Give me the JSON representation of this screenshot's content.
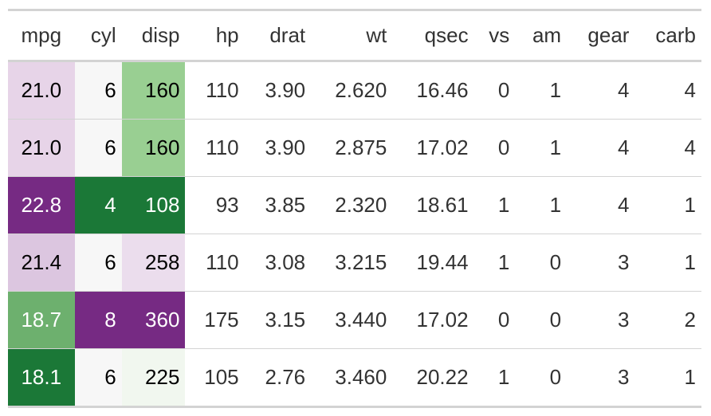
{
  "columns": [
    "mpg",
    "cyl",
    "disp",
    "hp",
    "drat",
    "wt",
    "qsec",
    "vs",
    "am",
    "gear",
    "carb"
  ],
  "rows": [
    [
      "21.0",
      "6",
      "160",
      "110",
      "3.90",
      "2.620",
      "16.46",
      "0",
      "1",
      "4",
      "4"
    ],
    [
      "21.0",
      "6",
      "160",
      "110",
      "3.90",
      "2.875",
      "17.02",
      "0",
      "1",
      "4",
      "4"
    ],
    [
      "22.8",
      "4",
      "108",
      "93",
      "3.85",
      "2.320",
      "18.61",
      "1",
      "1",
      "4",
      "1"
    ],
    [
      "21.4",
      "6",
      "258",
      "110",
      "3.08",
      "3.215",
      "19.44",
      "1",
      "0",
      "3",
      "1"
    ],
    [
      "18.7",
      "8",
      "360",
      "175",
      "3.15",
      "3.440",
      "17.02",
      "0",
      "0",
      "3",
      "2"
    ],
    [
      "18.1",
      "6",
      "225",
      "105",
      "2.76",
      "3.460",
      "20.22",
      "1",
      "0",
      "3",
      "1"
    ]
  ],
  "cell_colors": {
    "mpg": [
      "#E7D4E8",
      "#E7D4E8",
      "#762A83",
      "#DCC6E0",
      "#6DB06E",
      "#1B7837"
    ],
    "cyl": [
      "#F7F7F7",
      "#F7F7F7",
      "#1B7837",
      "#F7F7F7",
      "#762A83",
      "#F7F7F7"
    ],
    "disp": [
      "#99CF92",
      "#99CF92",
      "#1B7837",
      "#EBDDED",
      "#762A83",
      "#F1F7EF"
    ]
  },
  "dark_colors": [
    "#762A83",
    "#1B7837",
    "#6DB06E"
  ]
}
